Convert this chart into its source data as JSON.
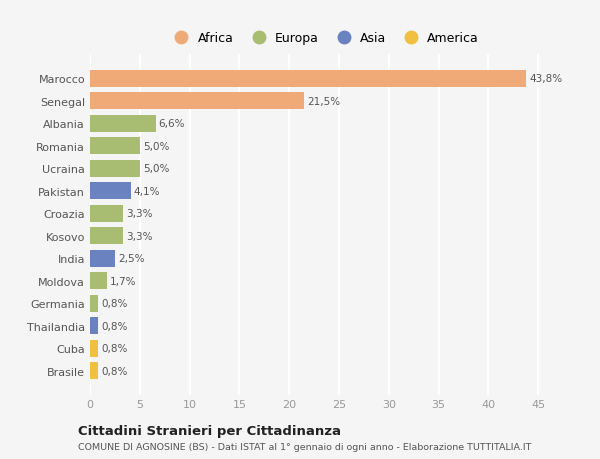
{
  "categories": [
    "Brasile",
    "Cuba",
    "Thailandia",
    "Germania",
    "Moldova",
    "India",
    "Kosovo",
    "Croazia",
    "Pakistan",
    "Ucraina",
    "Romania",
    "Albania",
    "Senegal",
    "Marocco"
  ],
  "values": [
    0.8,
    0.8,
    0.8,
    0.8,
    1.7,
    2.5,
    3.3,
    3.3,
    4.1,
    5.0,
    5.0,
    6.6,
    21.5,
    43.8
  ],
  "labels": [
    "0,8%",
    "0,8%",
    "0,8%",
    "0,8%",
    "1,7%",
    "2,5%",
    "3,3%",
    "3,3%",
    "4,1%",
    "5,0%",
    "5,0%",
    "6,6%",
    "21,5%",
    "43,8%"
  ],
  "bar_colors": [
    "#f0c040",
    "#f0c040",
    "#6b82c0",
    "#a8bc72",
    "#a8bc72",
    "#6b82c0",
    "#a8bc72",
    "#a8bc72",
    "#6b82c0",
    "#a8bc72",
    "#a8bc72",
    "#a8bc72",
    "#f0aa78",
    "#f0aa78"
  ],
  "africa_color": "#f0aa78",
  "europa_color": "#a8bc72",
  "asia_color": "#6b82c0",
  "america_color": "#f0c040",
  "xlim": [
    0,
    47
  ],
  "xticks": [
    0,
    5,
    10,
    15,
    20,
    25,
    30,
    35,
    40,
    45
  ],
  "title": "Cittadini Stranieri per Cittadinanza",
  "subtitle": "COMUNE DI AGNOSINE (BS) - Dati ISTAT al 1° gennaio di ogni anno - Elaborazione TUTTITALIA.IT",
  "background_color": "#f5f5f5",
  "grid_color": "#ffffff",
  "text_color": "#555555",
  "tick_color": "#999999"
}
